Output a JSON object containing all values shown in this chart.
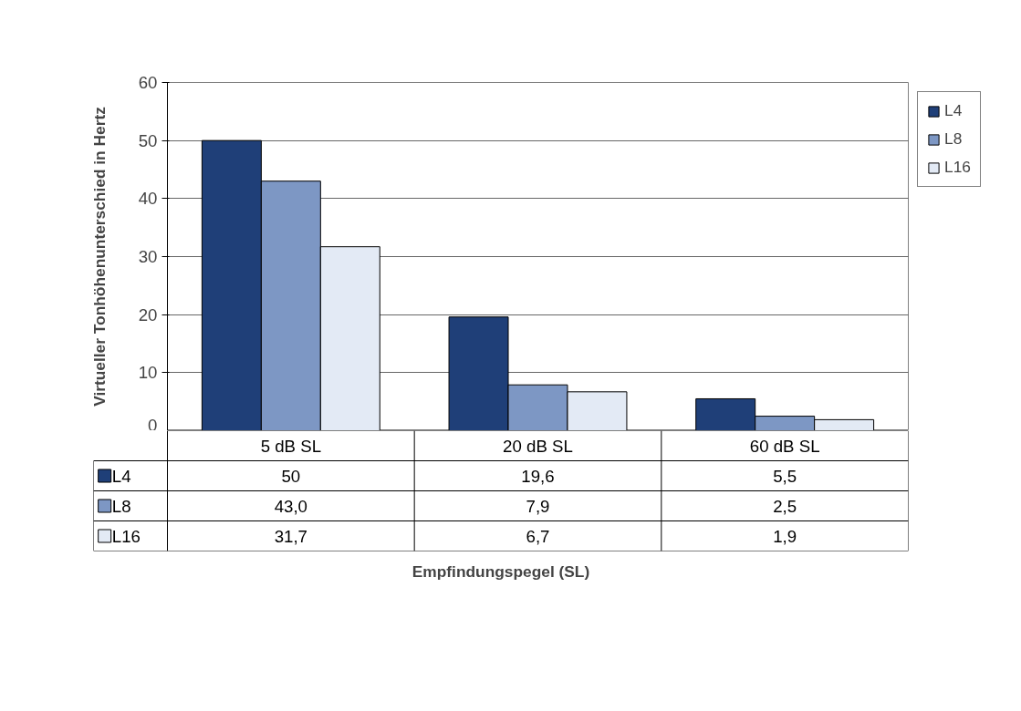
{
  "chart_data": {
    "type": "bar",
    "annotations": [
      "Empfindungspegel (SL)"
    ],
    "ylabel": "Virtueller Tonhöhenunterschied in Hertz",
    "categories": [
      "5 dB SL",
      "20 dB SL",
      "60 dB SL"
    ],
    "series": [
      {
        "name": "L4",
        "color": "#1f3f78",
        "values": [
          50,
          19.6,
          5.5
        ],
        "value_labels": [
          "50",
          "19,6",
          "5,5"
        ]
      },
      {
        "name": "L8",
        "color": "#7d97c4",
        "values": [
          43.0,
          7.9,
          2.5
        ],
        "value_labels": [
          "43,0",
          "7,9",
          "2,5"
        ]
      },
      {
        "name": "L16",
        "color": "#e3eaf5",
        "values": [
          31.7,
          6.7,
          1.9
        ],
        "value_labels": [
          "31,7",
          "6,7",
          "1,9"
        ]
      }
    ],
    "ylim": [
      0,
      60
    ],
    "yticks": [
      0,
      10,
      20,
      30,
      40,
      50,
      60
    ],
    "grid": "y",
    "legend": "right"
  }
}
